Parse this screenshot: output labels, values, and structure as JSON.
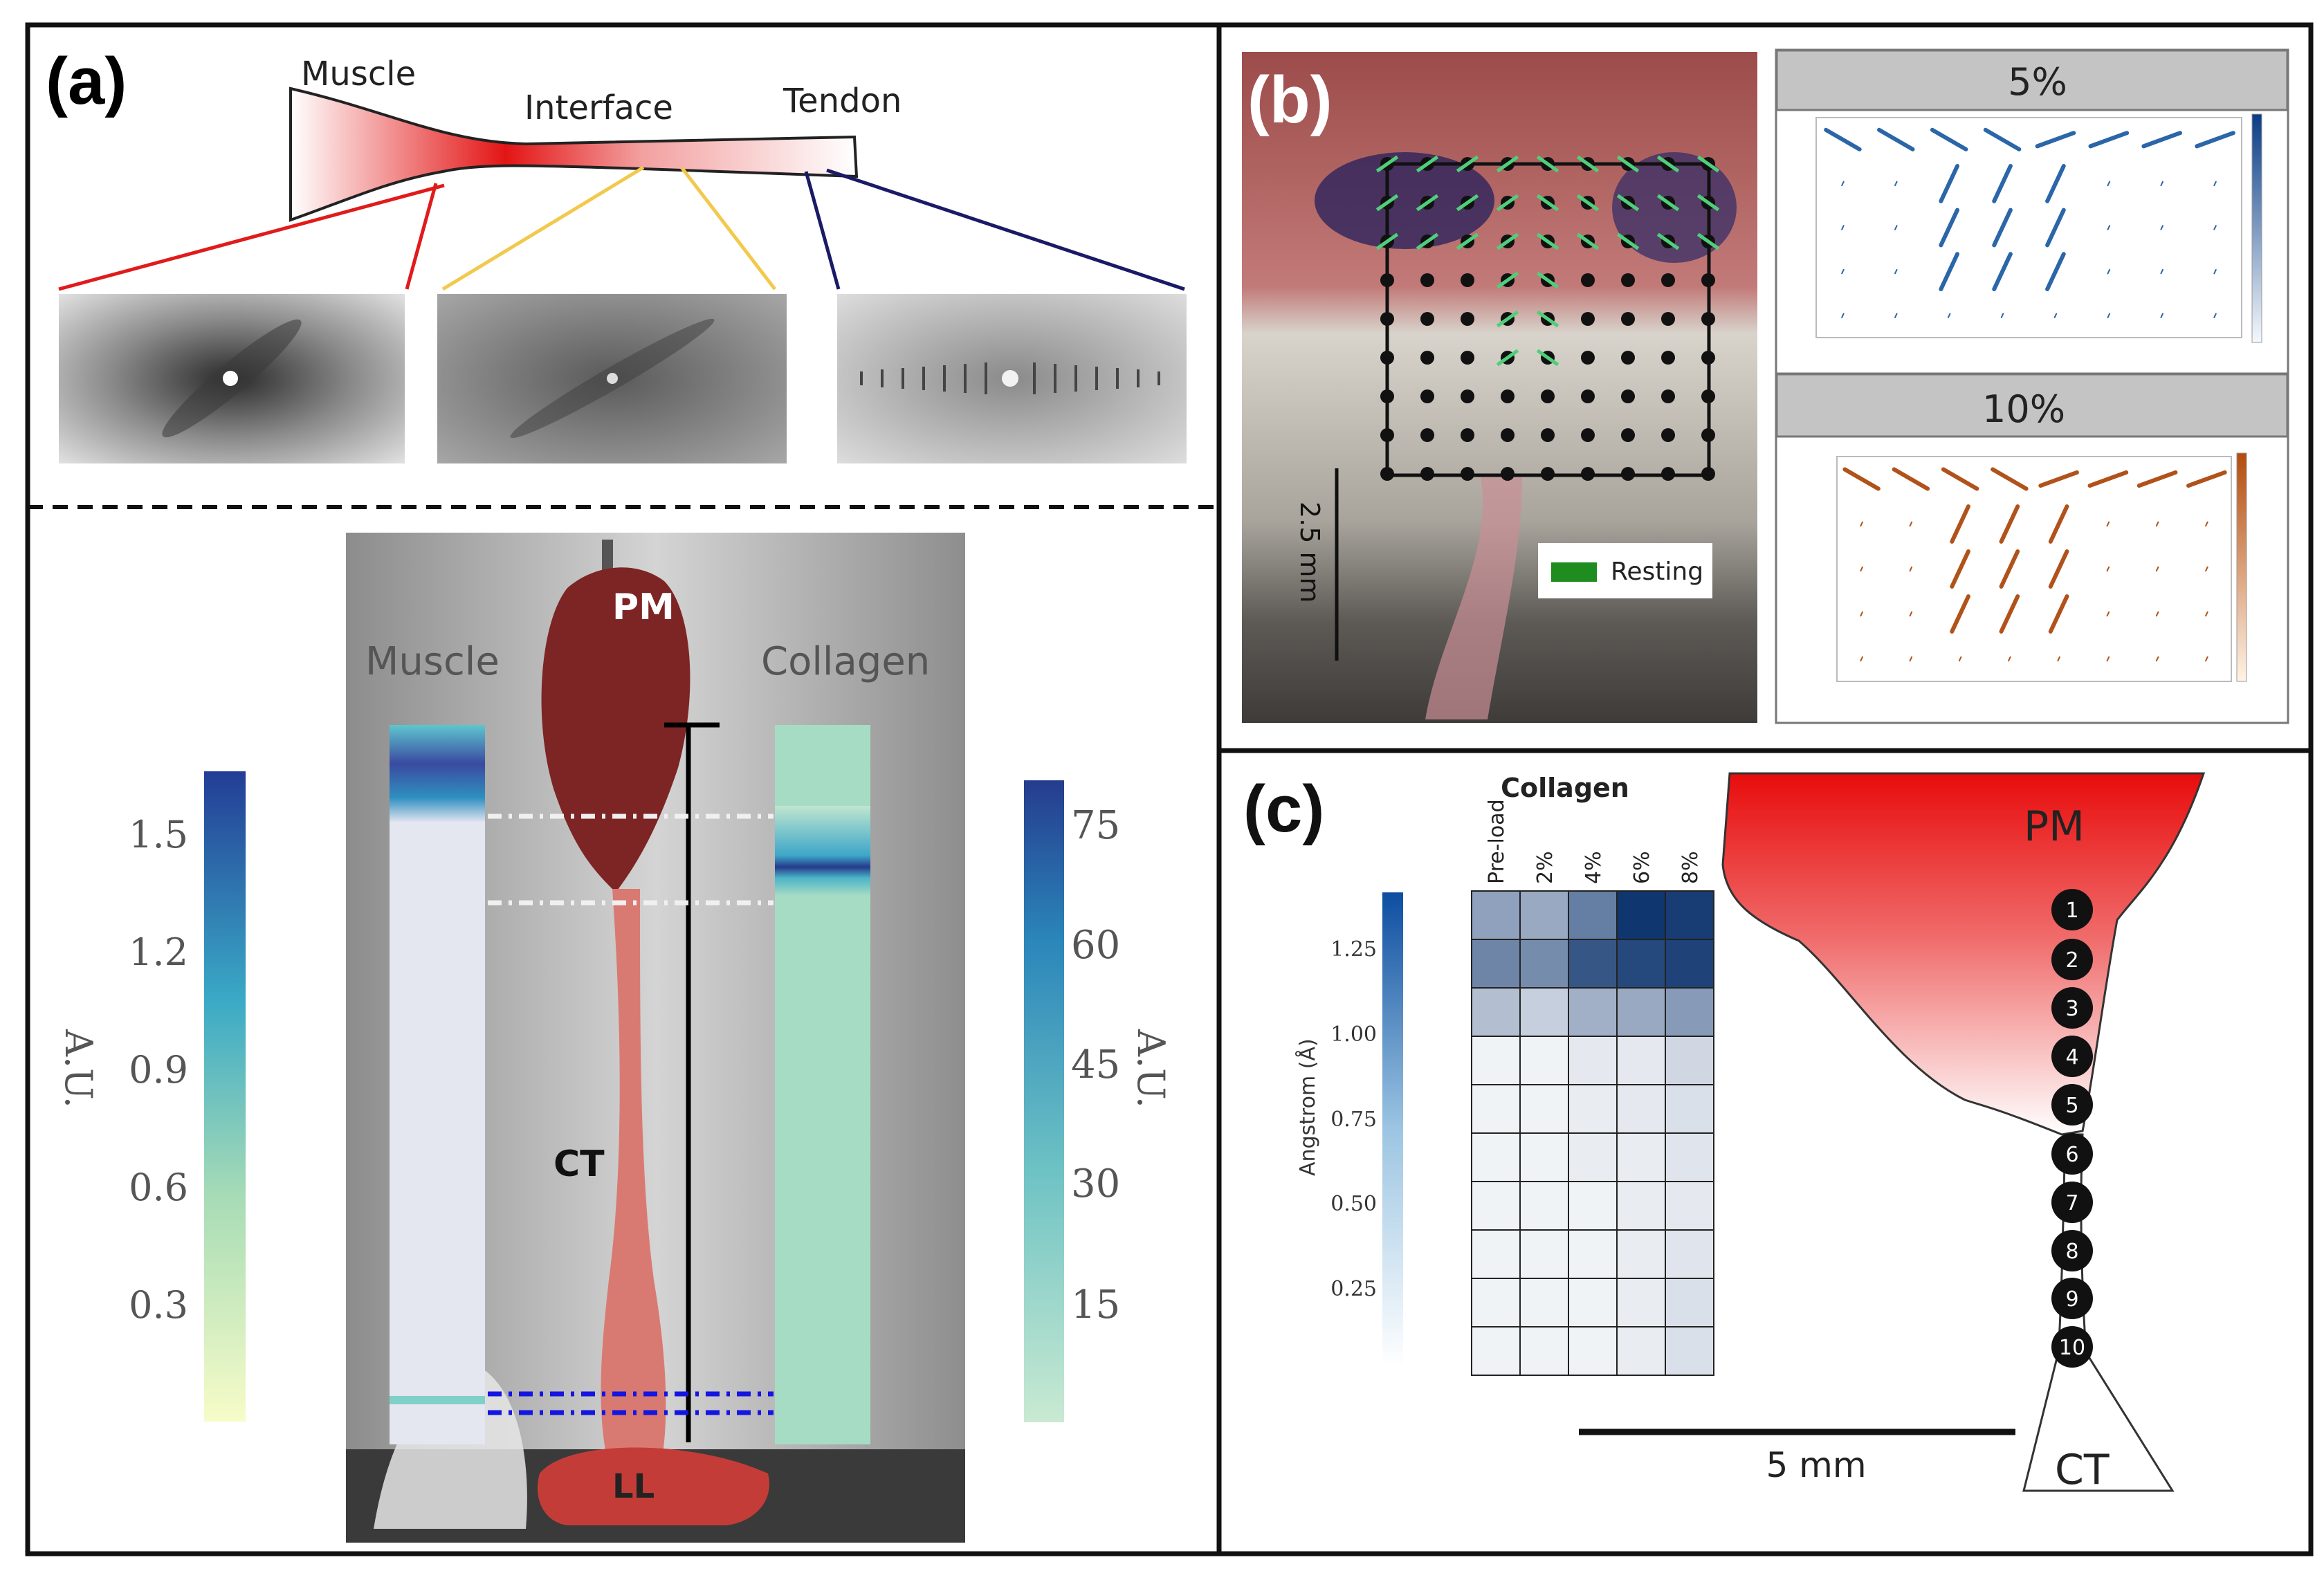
{
  "panels": {
    "a": {
      "label": "(a)",
      "regions": [
        "Muscle",
        "Interface",
        "Tendon"
      ],
      "photo": {
        "left_bar_title": "Muscle",
        "right_bar_title": "Collagen",
        "labels": {
          "pm": "PM",
          "ct": "CT",
          "ll": "LL"
        },
        "left_colorbar": {
          "ticks": [
            "1.5",
            "1.2",
            "0.9",
            "0.6",
            "0.3"
          ],
          "unit": "A.U."
        },
        "right_colorbar": {
          "ticks": [
            "75",
            "60",
            "45",
            "30",
            "15"
          ],
          "unit": "A.U."
        }
      }
    },
    "b": {
      "label": "(b)",
      "scale_text": "2.5 mm",
      "legend_text": "Resting",
      "legend_color": "#1e8c1e",
      "plots": [
        {
          "title": "5%"
        },
        {
          "title": "10%"
        }
      ]
    },
    "c": {
      "label": "(c)",
      "heatmap_title": "Collagen",
      "colorbar_label": "Angstrom (Å)",
      "colorbar_ticks": [
        "1.25",
        "1.00",
        "0.75",
        "0.50",
        "0.25"
      ],
      "pm": "PM",
      "ct": "CT",
      "scale_text": "5 mm",
      "points": [
        "1",
        "2",
        "3",
        "4",
        "5",
        "6",
        "7",
        "8",
        "9",
        "10"
      ]
    }
  },
  "chart_data": {
    "type": "heatmap",
    "title": "Collagen",
    "columns": [
      "Pre-load",
      "2%",
      "4%",
      "6%",
      "8%"
    ],
    "rows": [
      "1",
      "2",
      "3",
      "4",
      "5",
      "6",
      "7",
      "8",
      "9",
      "10"
    ],
    "colorbar_label": "Angstrom (Å)",
    "zlim": [
      0,
      1.4
    ],
    "values": [
      [
        0.55,
        0.5,
        0.8,
        1.35,
        1.3
      ],
      [
        0.75,
        0.7,
        1.1,
        1.2,
        1.25
      ],
      [
        0.35,
        0.25,
        0.45,
        0.5,
        0.6
      ],
      [
        0.05,
        0.05,
        0.1,
        0.1,
        0.2
      ],
      [
        0.05,
        0.05,
        0.08,
        0.1,
        0.15
      ],
      [
        0.05,
        0.05,
        0.08,
        0.08,
        0.12
      ],
      [
        0.05,
        0.05,
        0.05,
        0.08,
        0.1
      ],
      [
        0.05,
        0.05,
        0.05,
        0.08,
        0.12
      ],
      [
        0.05,
        0.05,
        0.05,
        0.08,
        0.15
      ],
      [
        0.05,
        0.05,
        0.05,
        0.08,
        0.15
      ]
    ]
  }
}
